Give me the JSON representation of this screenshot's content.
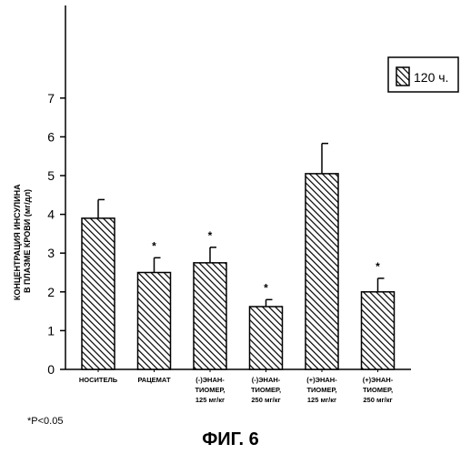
{
  "chart_data": {
    "type": "bar",
    "ylabel_lines": [
      "КОНЦЕНТРАЦИЯ ИНСУЛИНА",
      "В ПЛАЗМЕ КРОВИ (мг/дл)"
    ],
    "ylim": [
      0,
      7
    ],
    "yticks": [
      0,
      1,
      2,
      3,
      4,
      5,
      6,
      7
    ],
    "legend": {
      "label": "120 ч.",
      "placement": "top-right",
      "pattern": "diagonal-hatch"
    },
    "categories": [
      [
        "НОСИТЕЛЬ"
      ],
      [
        "РАЦЕМАТ"
      ],
      [
        "(-)ЭНАН-",
        "ТИОМЕР,",
        "125 мг/кг"
      ],
      [
        "(-)ЭНАН-",
        "ТИОМЕР,",
        "250 мг/кг"
      ],
      [
        "(+)ЭНАН-",
        "ТИОМЕР,",
        "125 мг/кг"
      ],
      [
        "(+)ЭНАН-",
        "ТИОМЕР,",
        "250 мг/кг"
      ]
    ],
    "series": [
      {
        "values": [
          3.9,
          2.5,
          2.75,
          1.62,
          5.05,
          2.0
        ],
        "errors": [
          0.48,
          0.38,
          0.4,
          0.18,
          0.78,
          0.35
        ],
        "significant": [
          false,
          true,
          true,
          true,
          false,
          true
        ]
      }
    ],
    "significance_marker": "*",
    "grid": false
  },
  "footnote": "*P<0.05",
  "figure_caption": "ФИГ. 6"
}
